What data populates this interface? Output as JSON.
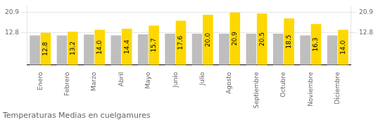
{
  "chart_data": {
    "type": "bar",
    "title": "Temperaturas Medias en cuelgamures",
    "categories": [
      "Enero",
      "Febrero",
      "Marzo",
      "Abril",
      "Mayo",
      "Junio",
      "Julio",
      "Agosto",
      "Septiembre",
      "Octubre",
      "Noviembre",
      "Diciembre"
    ],
    "series": [
      {
        "color": "#BEBEBE",
        "values": [
          11.8,
          11.8,
          12.1,
          11.8,
          12.2,
          12.5,
          12.5,
          12.5,
          12.5,
          12.5,
          11.8,
          11.8
        ]
      },
      {
        "color": "#FFD700",
        "values": [
          12.8,
          13.2,
          14.0,
          14.4,
          15.7,
          17.6,
          20.0,
          20.9,
          20.5,
          18.5,
          16.3,
          14.0
        ],
        "data_labels": true,
        "value_labels": [
          "12.8",
          "13.2",
          "14.0",
          "14.4",
          "15.7",
          "17.6",
          "20.0",
          "20.9",
          "20.5",
          "18.5",
          "16.3",
          "14.0"
        ]
      }
    ],
    "ylim": [
      0,
      23.5
    ],
    "yticks": [
      12.8,
      20.9
    ],
    "y2lim": [
      0,
      23.5
    ],
    "y2ticks": [
      12.8,
      20.9
    ],
    "grid": true
  }
}
